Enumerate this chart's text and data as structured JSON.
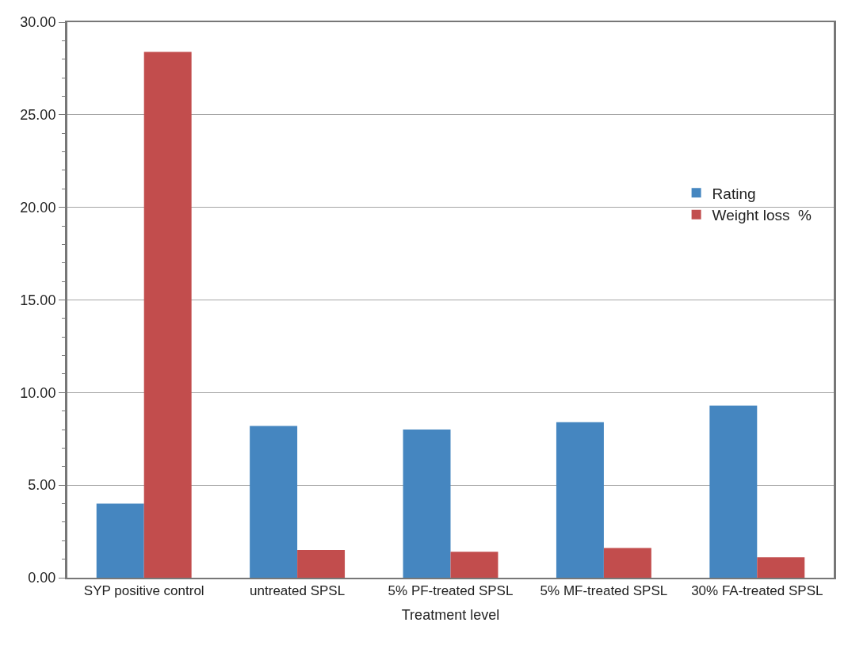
{
  "chart_data": {
    "type": "bar",
    "xlabel": "Treatment level",
    "categories": [
      "SYP positive control",
      "untreated SPSL",
      "5% PF-treated SPSL",
      "5% MF-treated SPSL",
      "30% FA-treated SPSL"
    ],
    "series": [
      {
        "name": "Rating",
        "color": "#4586c0",
        "values": [
          4.0,
          8.2,
          8.0,
          8.4,
          9.3
        ]
      },
      {
        "name": "Weight loss  %",
        "color": "#c24d4d",
        "values": [
          28.4,
          1.5,
          1.4,
          1.6,
          1.1
        ]
      }
    ],
    "ylim": [
      0,
      30
    ],
    "yticks": [
      {
        "value": 0,
        "label": "0.00"
      },
      {
        "value": 1,
        "label": null
      },
      {
        "value": 2,
        "label": null
      },
      {
        "value": 3,
        "label": null
      },
      {
        "value": 4,
        "label": null
      },
      {
        "value": 5,
        "label": "5.00"
      },
      {
        "value": 6,
        "label": null
      },
      {
        "value": 7,
        "label": null
      },
      {
        "value": 8,
        "label": null
      },
      {
        "value": 9,
        "label": null
      },
      {
        "value": 10,
        "label": "10.00"
      },
      {
        "value": 11,
        "label": null
      },
      {
        "value": 12,
        "label": null
      },
      {
        "value": 13,
        "label": null
      },
      {
        "value": 14,
        "label": null
      },
      {
        "value": 15,
        "label": "15.00"
      },
      {
        "value": 16,
        "label": null
      },
      {
        "value": 17,
        "label": null
      },
      {
        "value": 18,
        "label": null
      },
      {
        "value": 19,
        "label": null
      },
      {
        "value": 20,
        "label": "20.00"
      },
      {
        "value": 21,
        "label": null
      },
      {
        "value": 22,
        "label": null
      },
      {
        "value": 23,
        "label": null
      },
      {
        "value": 24,
        "label": null
      },
      {
        "value": 25,
        "label": "25.00"
      },
      {
        "value": 26,
        "label": null
      },
      {
        "value": 27,
        "label": null
      },
      {
        "value": 28,
        "label": null
      },
      {
        "value": 29,
        "label": null
      },
      {
        "value": 30,
        "label": "30.00"
      }
    ],
    "grid": "y",
    "legend": "right"
  }
}
